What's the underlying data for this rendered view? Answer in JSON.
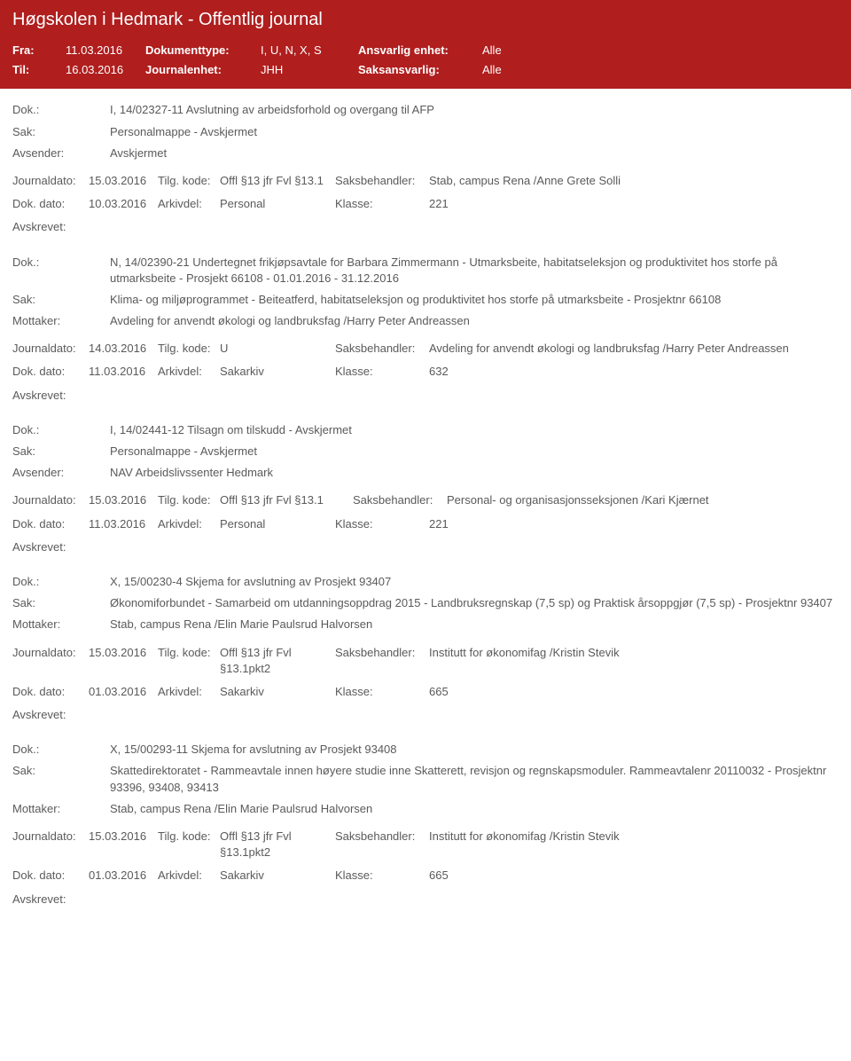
{
  "header": {
    "title": "Høgskolen i Hedmark - Offentlig journal",
    "fra_label": "Fra:",
    "fra_value": "11.03.2016",
    "til_label": "Til:",
    "til_value": "16.03.2016",
    "doktype_label": "Dokumenttype:",
    "doktype_value": "I, U, N, X, S",
    "journalenhet_label": "Journalenhet:",
    "journalenhet_value": "JHH",
    "ansvarlig_label": "Ansvarlig enhet:",
    "ansvarlig_value": "Alle",
    "saksansvarlig_label": "Saksansvarlig:",
    "saksansvarlig_value": "Alle"
  },
  "labels": {
    "dok": "Dok.:",
    "sak": "Sak:",
    "avsender": "Avsender:",
    "mottaker": "Mottaker:",
    "journaldato": "Journaldato:",
    "tilgkode": "Tilg. kode:",
    "saksbehandler": "Saksbehandler:",
    "dokdato": "Dok. dato:",
    "arkivdel": "Arkivdel:",
    "klasse": "Klasse:",
    "avskrevet": "Avskrevet:"
  },
  "entries": [
    {
      "dok": "I, 14/02327-11 Avslutning av arbeidsforhold og overgang til AFP",
      "sak": "Personalmappe - Avskjermet",
      "party_label": "Avsender:",
      "party": "Avskjermet",
      "journaldato": "15.03.2016",
      "tilgkode": "Offl §13 jfr Fvl §13.1",
      "saksbehandler": "Stab, campus Rena /Anne Grete Solli",
      "dokdato": "10.03.2016",
      "arkivdel": "Personal",
      "klasse": "221",
      "tk_wide": false
    },
    {
      "dok": "N, 14/02390-21 Undertegnet frikjøpsavtale for Barbara Zimmermann - Utmarksbeite, habitatseleksjon og produktivitet hos storfe på utmarksbeite - Prosjekt 66108 - 01.01.2016 - 31.12.2016",
      "sak": "Klima- og miljøprogrammet - Beiteatferd, habitatseleksjon og produktivitet hos storfe på utmarksbeite - Prosjektnr 66108",
      "party_label": "Mottaker:",
      "party": "Avdeling for anvendt økologi og landbruksfag /Harry Peter Andreassen",
      "journaldato": "14.03.2016",
      "tilgkode": "U",
      "saksbehandler": "Avdeling for anvendt økologi og landbruksfag /Harry Peter Andreassen",
      "dokdato": "11.03.2016",
      "arkivdel": "Sakarkiv",
      "klasse": "632",
      "tk_wide": false
    },
    {
      "dok": "I, 14/02441-12 Tilsagn om tilskudd - Avskjermet",
      "sak": "Personalmappe - Avskjermet",
      "party_label": "Avsender:",
      "party": "NAV Arbeidslivssenter Hedmark",
      "journaldato": "15.03.2016",
      "tilgkode": "Offl §13 jfr Fvl §13.1",
      "saksbehandler": "Personal- og organisasjonsseksjonen /Kari Kjærnet",
      "dokdato": "11.03.2016",
      "arkivdel": "Personal",
      "klasse": "221",
      "tk_wide": true
    },
    {
      "dok": "X, 15/00230-4 Skjema for avslutning av Prosjekt 93407",
      "sak": "Økonomiforbundet - Samarbeid om utdanningsoppdrag 2015 - Landbruksregnskap (7,5 sp) og  Praktisk årsoppgjør (7,5 sp) - Prosjektnr 93407",
      "party_label": "Mottaker:",
      "party": "Stab, campus Rena /Elin Marie Paulsrud Halvorsen",
      "journaldato": "15.03.2016",
      "tilgkode": "Offl §13 jfr Fvl §13.1pkt2",
      "saksbehandler": "Institutt for økonomifag /Kristin Stevik",
      "dokdato": "01.03.2016",
      "arkivdel": "Sakarkiv",
      "klasse": "665",
      "tk_wide": false
    },
    {
      "dok": "X, 15/00293-11 Skjema for avslutning av Prosjekt 93408",
      "sak": "Skattedirektoratet - Rammeavtale innen høyere studie inne Skatterett, revisjon og regnskapsmoduler. Rammeavtalenr 20110032 - Prosjektnr 93396, 93408, 93413",
      "party_label": "Mottaker:",
      "party": "Stab, campus Rena /Elin Marie Paulsrud Halvorsen",
      "journaldato": "15.03.2016",
      "tilgkode": "Offl §13 jfr Fvl §13.1pkt2",
      "saksbehandler": "Institutt for økonomifag /Kristin Stevik",
      "dokdato": "01.03.2016",
      "arkivdel": "Sakarkiv",
      "klasse": "665",
      "tk_wide": false
    }
  ]
}
